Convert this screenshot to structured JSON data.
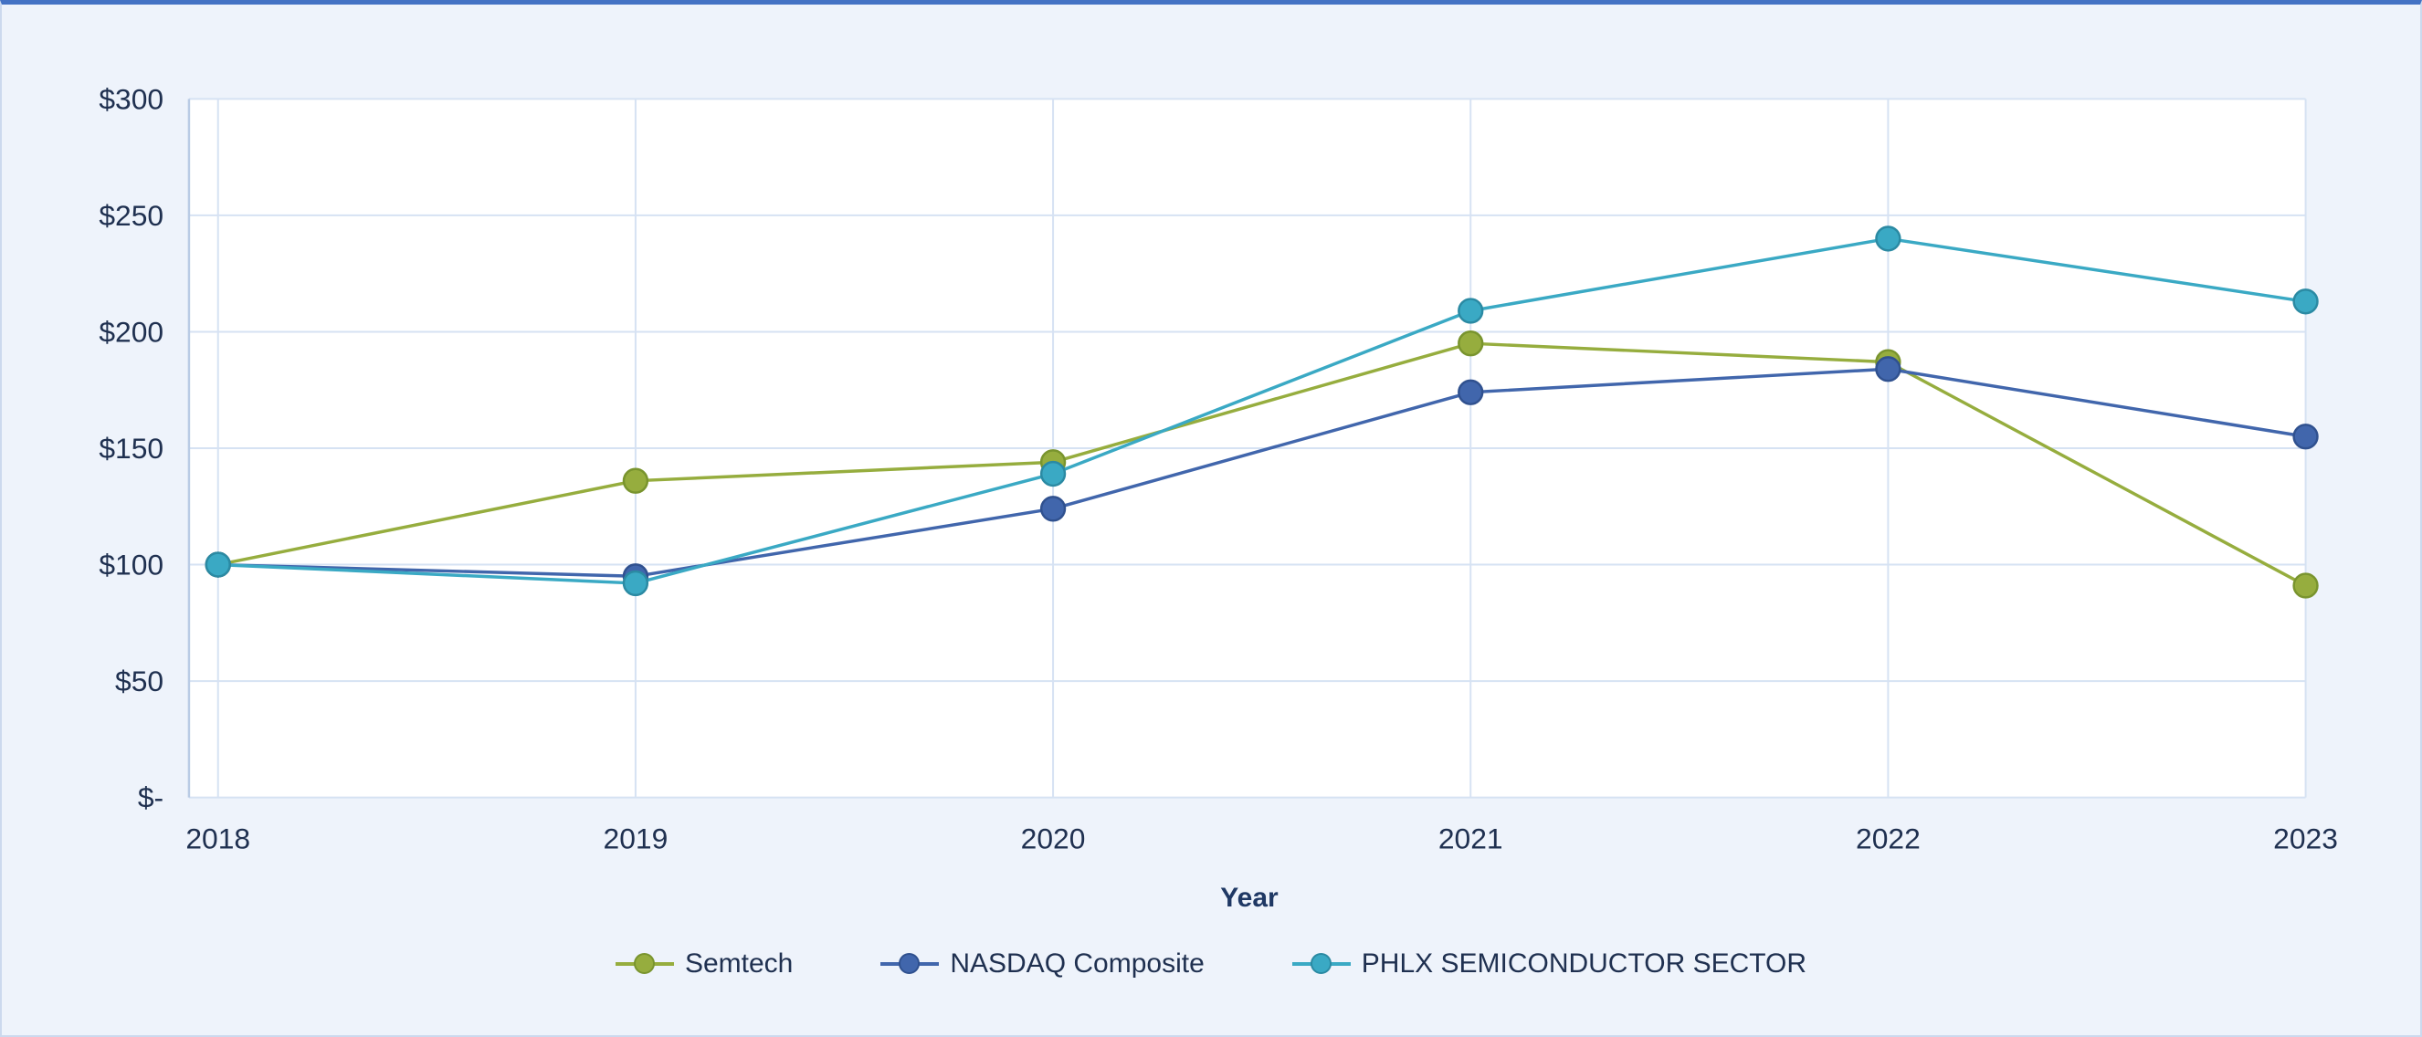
{
  "page": {
    "background_color": "#eef3fb",
    "plot_background_color": "#ffffff",
    "top_rule_color": "#4472c4",
    "gridline_color": "#d6e2f3",
    "axis_line_color": "#b9cbe5",
    "tick_label_color": "#1f3050",
    "axis_title_color": "#1f3864"
  },
  "chart_data": {
    "type": "line",
    "x": [
      "2018",
      "2019",
      "2020",
      "2021",
      "2022",
      "2023"
    ],
    "xlabel": "Year",
    "ylabel": "",
    "title": "",
    "ylim": [
      0,
      300
    ],
    "ytick_step": 50,
    "ytick_labels": [
      "$-",
      "$50",
      "$100",
      "$150",
      "$200",
      "$250",
      "$300"
    ],
    "grid": true,
    "legend_position": "bottom",
    "series": [
      {
        "name": "Semtech",
        "color": "#96ad3e",
        "marker_stroke": "#79942e",
        "values": [
          100,
          136,
          144,
          195,
          187,
          91
        ]
      },
      {
        "name": "NASDAQ Composite",
        "color": "#4166ac",
        "marker_stroke": "#30518f",
        "values": [
          100,
          95,
          124,
          174,
          184,
          155
        ]
      },
      {
        "name": "PHLX SEMICONDUCTOR SECTOR",
        "color": "#3aa9c4",
        "marker_stroke": "#2b8aa3",
        "values": [
          100,
          92,
          139,
          209,
          240,
          213
        ]
      }
    ]
  }
}
